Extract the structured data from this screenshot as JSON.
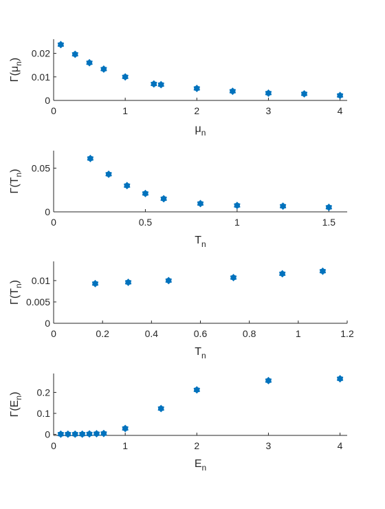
{
  "chart_data": [
    {
      "type": "scatter",
      "xlabel_main": "μ",
      "xlabel_sub": "n",
      "ylabel_main": "Γ(μ",
      "ylabel_sub": "n",
      "ylabel_end": ")",
      "xlim": [
        0,
        4.1
      ],
      "ylim": [
        0,
        0.026
      ],
      "xticks": [
        0,
        1,
        2,
        3,
        4
      ],
      "xtick_labels": [
        "0",
        "1",
        "2",
        "3",
        "4"
      ],
      "yticks": [
        0,
        0.01,
        0.02
      ],
      "ytick_labels": [
        "0",
        "0.01",
        "0.02"
      ],
      "color": "#0072BD",
      "grid": false,
      "x": [
        0.1,
        0.3,
        0.5,
        0.7,
        1.0,
        1.4,
        1.5,
        2.0,
        2.5,
        3.0,
        3.5,
        4.0
      ],
      "y": [
        0.0237,
        0.0196,
        0.016,
        0.0133,
        0.01,
        0.007,
        0.0067,
        0.0051,
        0.0039,
        0.0031,
        0.0028,
        0.0021
      ]
    },
    {
      "type": "scatter",
      "xlabel_main": "T",
      "xlabel_sub": "n",
      "ylabel_main": "Γ(T",
      "ylabel_sub": "n",
      "ylabel_end": ")",
      "xlim": [
        0,
        1.6
      ],
      "ylim": [
        0,
        0.07
      ],
      "xticks": [
        0,
        0.5,
        1,
        1.5
      ],
      "xtick_labels": [
        "0",
        "0.5",
        "1",
        "1.5"
      ],
      "yticks": [
        0,
        0.05
      ],
      "ytick_labels": [
        "0",
        "0.05"
      ],
      "color": "#0072BD",
      "grid": false,
      "x": [
        0.2,
        0.3,
        0.4,
        0.5,
        0.6,
        0.8,
        1.0,
        1.25,
        1.5
      ],
      "y": [
        0.061,
        0.043,
        0.03,
        0.021,
        0.015,
        0.0095,
        0.0073,
        0.0065,
        0.0052
      ]
    },
    {
      "type": "scatter",
      "xlabel_main": "T",
      "xlabel_sub": "n",
      "ylabel_main": "Γ(T",
      "ylabel_sub": "n",
      "ylabel_end": ")",
      "xlim": [
        0,
        1.2
      ],
      "ylim": [
        0,
        0.0145
      ],
      "xticks": [
        0,
        0.2,
        0.4,
        0.6,
        0.8,
        1.0,
        1.2
      ],
      "xtick_labels": [
        "0",
        "0.2",
        "0.4",
        "0.6",
        "0.8",
        "1",
        "1.2"
      ],
      "yticks": [
        0,
        0.005,
        0.01
      ],
      "ytick_labels": [
        "0",
        "0.005",
        "0.01"
      ],
      "color": "#0072BD",
      "grid": false,
      "x": [
        0.17,
        0.305,
        0.47,
        0.735,
        0.935,
        1.1
      ],
      "y": [
        0.0093,
        0.0096,
        0.01,
        0.0107,
        0.0116,
        0.0122
      ]
    },
    {
      "type": "scatter",
      "xlabel_main": "E",
      "xlabel_sub": "n",
      "ylabel_main": "Γ(E",
      "ylabel_sub": "n",
      "ylabel_end": ")",
      "xlim": [
        0,
        4.1
      ],
      "ylim": [
        -0.005,
        0.29
      ],
      "xticks": [
        0,
        1,
        2,
        3,
        4
      ],
      "xtick_labels": [
        "0",
        "1",
        "2",
        "3",
        "4"
      ],
      "yticks": [
        0,
        0.1,
        0.2
      ],
      "ytick_labels": [
        "0",
        "0.1",
        "0.2"
      ],
      "color": "#0072BD",
      "grid": false,
      "x": [
        0.1,
        0.2,
        0.3,
        0.4,
        0.5,
        0.6,
        0.7,
        1.0,
        1.5,
        2.0,
        3.0,
        4.0
      ],
      "y": [
        0.001,
        0.001,
        0.001,
        0.001,
        0.002,
        0.003,
        0.004,
        0.028,
        0.123,
        0.212,
        0.256,
        0.265
      ]
    }
  ]
}
